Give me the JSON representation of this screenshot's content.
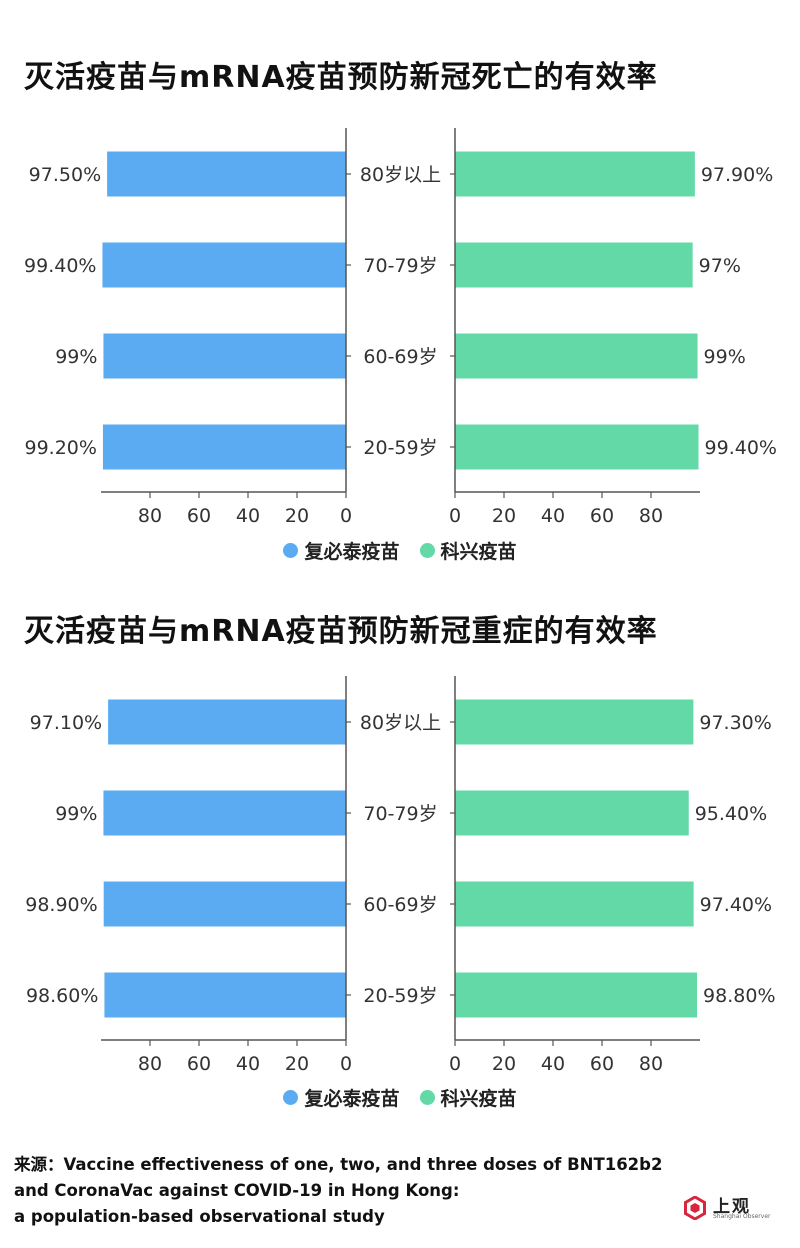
{
  "chart_data": [
    {
      "type": "bar",
      "title": "灭活疫苗与mRNA疫苗预防新冠死亡的有效率",
      "categories": [
        "80岁以上",
        "70-79岁",
        "60-69岁",
        "20-59岁"
      ],
      "series": [
        {
          "name": "复必泰疫苗",
          "values": [
            97.5,
            99.4,
            99,
            99.2
          ],
          "labels": [
            "97.50%",
            "99.40%",
            "99%",
            "99.20%"
          ]
        },
        {
          "name": "科兴疫苗",
          "values": [
            97.9,
            97,
            99,
            99.4
          ],
          "labels": [
            "97.90%",
            "97%",
            "99%",
            "99.40%"
          ]
        }
      ],
      "left_ticks": [
        "80",
        "60",
        "40",
        "20",
        "0"
      ],
      "right_ticks": [
        "0",
        "20",
        "40",
        "60",
        "80"
      ],
      "xlim": [
        0,
        100
      ],
      "orientation": "horizontal-butterfly"
    },
    {
      "type": "bar",
      "title": "灭活疫苗与mRNA疫苗预防新冠重症的有效率",
      "categories": [
        "80岁以上",
        "70-79岁",
        "60-69岁",
        "20-59岁"
      ],
      "series": [
        {
          "name": "复必泰疫苗",
          "values": [
            97.1,
            99,
            98.9,
            98.6
          ],
          "labels": [
            "97.10%",
            "99%",
            "98.90%",
            "98.60%"
          ]
        },
        {
          "name": "科兴疫苗",
          "values": [
            97.3,
            95.4,
            97.4,
            98.8
          ],
          "labels": [
            "97.30%",
            "95.40%",
            "97.40%",
            "98.80%"
          ]
        }
      ],
      "left_ticks": [
        "80",
        "60",
        "40",
        "20",
        "0"
      ],
      "right_ticks": [
        "0",
        "20",
        "40",
        "60",
        "80"
      ],
      "xlim": [
        0,
        100
      ],
      "orientation": "horizontal-butterfly"
    }
  ],
  "legend": {
    "left_label": "复必泰疫苗",
    "right_label": "科兴疫苗",
    "left_color": "#5aabf2",
    "right_color": "#63d9a8"
  },
  "source": {
    "line1": "来源：Vaccine effectiveness of one, two, and three doses of BNT162b2",
    "line2": " and CoronaVac against COVID-19 in Hong Kong:",
    "line3": " a population-based observational study"
  },
  "logo": {
    "text": "上观",
    "subtext": "Shanghai Observer",
    "color": "#d7263d"
  },
  "colors": {
    "axis": "#555555",
    "label_text": "#333333"
  }
}
